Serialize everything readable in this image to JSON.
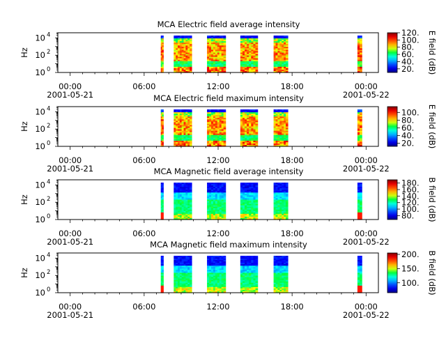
{
  "panels": [
    {
      "title": "MCA  Electric field average intensity",
      "ylabel": "Hz",
      "colorbar_label": "E field (dB)",
      "colorbar_ticks": [
        "20.",
        "40.",
        "60.",
        "80.",
        "100.",
        "120."
      ],
      "colorbar_values": [
        20,
        40,
        60,
        80,
        100,
        120
      ],
      "colorbar_range": [
        10,
        120
      ],
      "kind": "E"
    },
    {
      "title": "MCA  Electric field maximum intensity",
      "ylabel": "Hz",
      "colorbar_label": "E field (dB)",
      "colorbar_ticks": [
        "20.",
        "40.",
        "60.",
        "80.",
        "100."
      ],
      "colorbar_values": [
        20,
        40,
        60,
        80,
        100
      ],
      "colorbar_range": [
        12,
        115
      ],
      "kind": "E"
    },
    {
      "title": "MCA  Magnetic field average intensity",
      "ylabel": "Hz",
      "colorbar_label": "B field (dB)",
      "colorbar_ticks": [
        "80.",
        "100.",
        "120.",
        "140.",
        "160.",
        "180."
      ],
      "colorbar_values": [
        80,
        100,
        120,
        140,
        160,
        180
      ],
      "colorbar_range": [
        68,
        190
      ],
      "kind": "B"
    },
    {
      "title": "MCA  Magnetic field maximum intensity",
      "ylabel": "Hz",
      "colorbar_label": "B field (dB)",
      "colorbar_ticks": [
        "100.",
        "150.",
        "200."
      ],
      "colorbar_values": [
        100,
        150,
        200
      ],
      "colorbar_range": [
        65,
        205
      ],
      "kind": "B"
    }
  ],
  "xticks": [
    {
      "time": "00:00",
      "date": "2001-05-21",
      "hour": 0
    },
    {
      "time": "06:00",
      "date": "",
      "hour": 6
    },
    {
      "time": "12:00",
      "date": "",
      "hour": 12
    },
    {
      "time": "18:00",
      "date": "",
      "hour": 18
    },
    {
      "time": "00:00",
      "date": "2001-05-22",
      "hour": 24
    }
  ],
  "yticks": [
    {
      "base": "10",
      "exp": "0",
      "value": 1
    },
    {
      "base": "10",
      "exp": "2",
      "value": 100
    },
    {
      "base": "10",
      "exp": "4",
      "value": 10000
    }
  ],
  "chart_data": {
    "type": "heatmap",
    "x_range_hours": [
      -1,
      25
    ],
    "y_scale": "log",
    "y_range_hz": [
      1,
      40000
    ],
    "data_intervals_hours": [
      [
        7.35,
        7.55
      ],
      [
        8.4,
        9.85
      ],
      [
        11.1,
        12.6
      ],
      [
        13.8,
        15.2
      ],
      [
        16.5,
        17.65
      ],
      [
        23.3,
        23.65
      ]
    ]
  }
}
